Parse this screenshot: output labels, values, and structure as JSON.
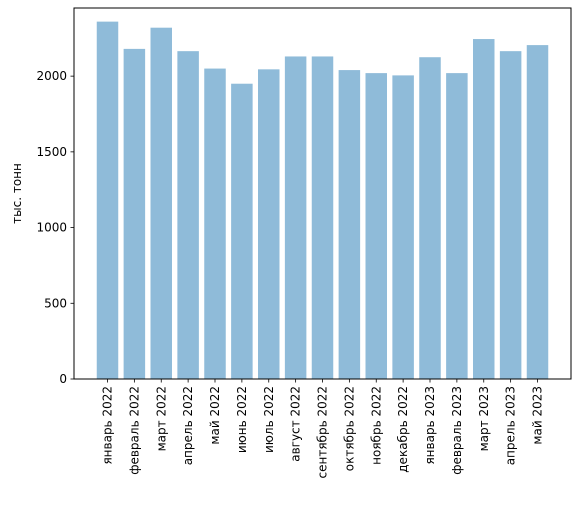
{
  "chart_data": {
    "type": "bar",
    "title": "",
    "xlabel": "",
    "ylabel": "тыс. тонн",
    "ylim": [
      0,
      2450
    ],
    "yticks": [
      0,
      500,
      1000,
      1500,
      2000
    ],
    "ytick_labels": [
      "0",
      "500",
      "1000",
      "1500",
      "2000"
    ],
    "grid": false,
    "legend": "none",
    "bar_color": "#8fbbd9",
    "categories": [
      "январь 2022",
      "февраль 2022",
      "март 2022",
      "апрель 2022",
      "май 2022",
      "июнь 2022",
      "июль 2022",
      "август 2022",
      "сентябрь 2022",
      "октябрь 2022",
      "ноябрь 2022",
      "декабрь 2022",
      "январь 2023",
      "февраль 2023",
      "март 2023",
      "апрель 2023",
      "май 2023"
    ],
    "values": [
      2360,
      2180,
      2320,
      2165,
      2050,
      1950,
      2045,
      2130,
      2130,
      2040,
      2020,
      2005,
      2125,
      2020,
      2245,
      2165,
      2205
    ]
  }
}
